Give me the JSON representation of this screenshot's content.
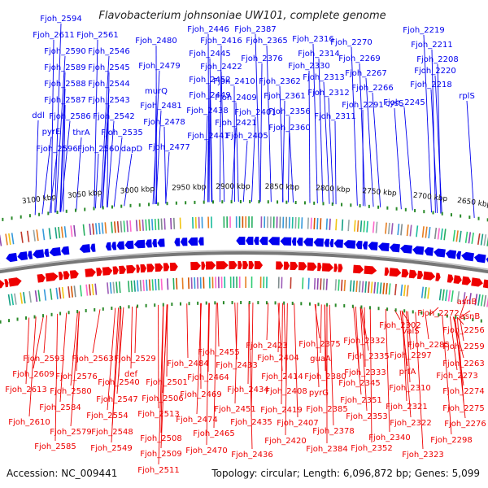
{
  "title": "Flavobacterium johnsoniae UW101, complete genome",
  "footer": {
    "accession": "Accession: NC_009441",
    "summary": "Topology: circular; Length: 6,096,872 bp; Genes: 5,099"
  },
  "colors": {
    "forward": "#0000ee",
    "reverse": "#ee0000",
    "backbone": "#777777",
    "tick_dot": "#2a8a2a"
  },
  "ticks": [
    "3100 kbp",
    "3050 kbp",
    "3000 kbp",
    "2950 kbp",
    "2900 kbp",
    "2850 kbp",
    "2800 kbp",
    "2750 kbp",
    "2700 kbp",
    "2650 kbp"
  ],
  "forward_labels": [
    "Fjoh_2594",
    "Fjoh_2611",
    "Fjoh_2561",
    "Fjoh_2590",
    "Fjoh_2546",
    "Fjoh_2589",
    "Fjoh_2545",
    "Fjoh_2588",
    "Fjoh_2544",
    "Fjoh_2587",
    "Fjoh_2543",
    "ddl",
    "Fjoh_2586",
    "Fjoh_2542",
    "pyrE",
    "thrA",
    "Fjoh_2535",
    "Fjoh_2596",
    "Fjoh_2560",
    "dapD",
    "Fjoh_2480",
    "Fjoh_2479",
    "murQ",
    "Fjoh_2481",
    "Fjoh_2478",
    "Fjoh_2477",
    "Fjoh_2446",
    "Fjoh_2445",
    "Fjoh_2452",
    "Fjoh_2449",
    "Fjoh_2438",
    "Fjoh_2441",
    "Fjoh_2387",
    "Fjoh_2416",
    "Fjoh_2422",
    "Fjoh_2410",
    "Fjoh_2409",
    "Fjoh_2421",
    "Fjoh_2405",
    "Fjoh_2365",
    "Fjoh_2376",
    "Fjoh_2362",
    "Fjoh_2361",
    "Fjoh_2401",
    "Fjoh_2356",
    "Fjoh_2360",
    "Fjoh_2316",
    "Fjoh_2314",
    "Fjoh_2330",
    "Fjoh_2313",
    "Fjoh_2312",
    "Fjoh_2311",
    "Fjoh_2270",
    "Fjoh_2269",
    "Fjoh_2267",
    "Fjoh_2266",
    "Fjoh_2291",
    "cysS",
    "Fjoh_2219",
    "Fjoh_2211",
    "Fjoh_2208",
    "Fjoh_2220",
    "Fjoh_2218",
    "rplS",
    "Fjoh_2245"
  ],
  "reverse_labels": [
    "asnB",
    "Fjoh_2272",
    "asnB",
    "Fjoh_2302",
    "valS",
    "Fjoh_2256",
    "Fjoh_2285",
    "Fjoh_2259",
    "Fjoh_2297",
    "Fjoh_2263",
    "Fjoh_2273",
    "Fjoh_2274",
    "Fjoh_2275",
    "Fjoh_2276",
    "Fjoh_2593",
    "Fjoh_2563",
    "Fjoh_2529",
    "Fjoh_2609",
    "Fjoh_2576",
    "Fjoh_2540",
    "def",
    "Fjoh_2613",
    "Fjoh_2580",
    "Fjoh_2501",
    "Fjoh_2547",
    "Fjoh_2506",
    "Fjoh_2584",
    "Fjoh_2554",
    "Fjoh_2513",
    "Fjoh_2610",
    "Fjoh_2579",
    "Fjoh_2548",
    "Fjoh_2508",
    "Fjoh_2585",
    "Fjoh_2549",
    "Fjoh_2509",
    "Fjoh_2511",
    "Fjoh_2484",
    "Fjoh_2455",
    "Fjoh_2464",
    "Fjoh_2469",
    "Fjoh_2474",
    "Fjoh_2465",
    "Fjoh_2470",
    "Fjoh_2433",
    "Fjoh_2451",
    "Fjoh_2434",
    "Fjoh_2435",
    "Fjoh_2436",
    "Fjoh_2423",
    "Fjoh_2404",
    "Fjoh_2414",
    "Fjoh_2408",
    "Fjoh_2419",
    "Fjoh_2407",
    "Fjoh_2420",
    "Fjoh_2375",
    "guaA",
    "Fjoh_2380",
    "pyrG",
    "Fjoh_2385",
    "Fjoh_2378",
    "Fjoh_2384",
    "Fjoh_2332",
    "Fjoh_2335",
    "Fjoh_2333",
    "prfA",
    "Fjoh_2345",
    "Fjoh_2351",
    "Fjoh_2353",
    "Fjoh_2352",
    "Fjoh_2340",
    "Fjoh_2310",
    "Fjoh_2321",
    "Fjoh_2322",
    "Fjoh_2323",
    "Fjoh_2298"
  ]
}
